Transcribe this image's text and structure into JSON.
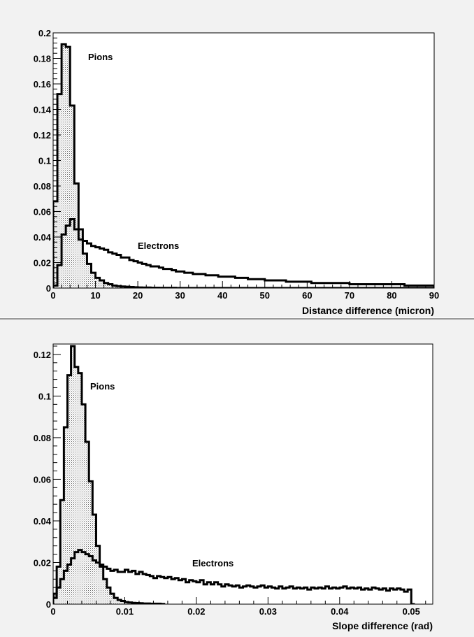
{
  "chart_data": [
    {
      "type": "area",
      "xlabel": "Distance difference (micron)",
      "ylabel": "",
      "xlim": [
        0,
        90
      ],
      "ylim": [
        0,
        0.2
      ],
      "x_ticks": [
        "0",
        "10",
        "20",
        "30",
        "40",
        "50",
        "60",
        "70",
        "80",
        "90"
      ],
      "y_ticks": [
        "0",
        "0.02",
        "0.04",
        "0.06",
        "0.08",
        "0.1",
        "0.12",
        "0.14",
        "0.16",
        "0.18",
        "0.2"
      ],
      "grid": false,
      "legend": "none",
      "bin_width": 1,
      "annotations": [
        "Pions",
        "Electrons"
      ],
      "series": [
        {
          "name": "Pions",
          "style": "filled-dotted",
          "x": [
            0,
            1,
            2,
            3,
            4,
            5,
            6,
            7,
            8,
            9,
            10,
            11,
            12,
            13,
            14,
            15,
            16,
            17,
            18,
            19,
            20,
            21,
            22,
            23,
            24,
            25,
            26,
            27,
            28,
            29,
            30,
            31,
            32,
            33,
            34,
            35,
            36,
            37,
            38,
            39,
            40,
            41,
            42,
            43,
            44,
            45,
            46,
            47,
            48,
            49,
            50,
            51,
            52,
            53,
            54,
            55,
            56,
            57,
            58,
            59,
            60,
            61,
            62,
            63,
            64,
            65,
            66,
            67,
            68,
            69,
            70,
            71,
            72,
            73,
            74,
            75,
            76,
            77,
            78,
            79,
            80,
            81,
            82,
            83,
            84,
            85,
            86,
            87,
            88,
            89
          ],
          "values": [
            0.068,
            0.152,
            0.191,
            0.189,
            0.143,
            0.082,
            0.046,
            0.027,
            0.019,
            0.012,
            0.008,
            0.006,
            0.004,
            0.003,
            0.002,
            0.0015,
            0.0012,
            0.001,
            0.0008,
            0.0006,
            0.0005,
            0.0004,
            0.0004,
            0.0003,
            0.0003,
            0.0002,
            0.0002,
            0.0002,
            0.0002,
            0.0001,
            0.0001,
            0.0001,
            0.0001,
            0.0001,
            0.0001,
            0.0001,
            0.0001,
            0.0001,
            0.0001,
            0.0001,
            0.0001,
            0.0001,
            0.0001,
            0.0001,
            0.0001,
            0.0001,
            0.0001,
            0.0001,
            0.0001,
            0.0001,
            0.0001,
            0.0001,
            0.0001,
            0.0001,
            0.0001,
            0.0001,
            0.0001,
            0.0001,
            0.0001,
            0.0001,
            0.0001,
            0.0001,
            0.0001,
            0.0001,
            0.0001,
            0.0001,
            0.0001,
            0.0001,
            0.0001,
            0.0001,
            0.0001,
            0.0001,
            0.0001,
            0.0001,
            0.0001,
            0.0001,
            0.0001,
            0.0001,
            0.0001,
            0.0001,
            0.0001,
            0.0001,
            0.0001,
            0.0001,
            0.0001,
            0.0001,
            0.0001,
            0.0001,
            0.0001,
            0.0001
          ]
        },
        {
          "name": "Electrons",
          "style": "line",
          "x": [
            0,
            1,
            2,
            3,
            4,
            5,
            6,
            7,
            8,
            9,
            10,
            11,
            12,
            13,
            14,
            15,
            16,
            17,
            18,
            19,
            20,
            21,
            22,
            23,
            24,
            25,
            26,
            27,
            28,
            29,
            30,
            31,
            32,
            33,
            34,
            35,
            36,
            37,
            38,
            39,
            40,
            41,
            42,
            43,
            44,
            45,
            46,
            47,
            48,
            49,
            50,
            51,
            52,
            53,
            54,
            55,
            56,
            57,
            58,
            59,
            60,
            61,
            62,
            63,
            64,
            65,
            66,
            67,
            68,
            69,
            70,
            71,
            72,
            73,
            74,
            75,
            76,
            77,
            78,
            79,
            80,
            81,
            82,
            83,
            84,
            85,
            86,
            87,
            88,
            89
          ],
          "values": [
            0.002,
            0.018,
            0.042,
            0.049,
            0.054,
            0.046,
            0.038,
            0.037,
            0.035,
            0.033,
            0.032,
            0.031,
            0.03,
            0.028,
            0.027,
            0.026,
            0.024,
            0.024,
            0.022,
            0.021,
            0.02,
            0.019,
            0.018,
            0.017,
            0.017,
            0.016,
            0.015,
            0.015,
            0.014,
            0.013,
            0.013,
            0.012,
            0.012,
            0.011,
            0.011,
            0.011,
            0.01,
            0.01,
            0.01,
            0.009,
            0.009,
            0.009,
            0.009,
            0.008,
            0.008,
            0.008,
            0.007,
            0.007,
            0.007,
            0.007,
            0.006,
            0.006,
            0.006,
            0.006,
            0.006,
            0.005,
            0.005,
            0.005,
            0.005,
            0.005,
            0.005,
            0.004,
            0.004,
            0.004,
            0.004,
            0.004,
            0.004,
            0.004,
            0.004,
            0.004,
            0.003,
            0.003,
            0.003,
            0.003,
            0.003,
            0.003,
            0.003,
            0.003,
            0.003,
            0.003,
            0.003,
            0.003,
            0.003,
            0.002,
            0.002,
            0.002,
            0.002,
            0.002,
            0.002,
            0.002
          ]
        }
      ]
    },
    {
      "type": "area",
      "xlabel": "Slope difference (rad)",
      "ylabel": "",
      "xlim": [
        0,
        0.053
      ],
      "ylim": [
        0,
        0.125
      ],
      "x_ticks": [
        "0",
        "0.01",
        "0.02",
        "0.03",
        "0.04",
        "0.05"
      ],
      "y_ticks": [
        "0",
        "0.02",
        "0.04",
        "0.06",
        "0.08",
        "0.1",
        "0.12"
      ],
      "grid": false,
      "legend": "none",
      "bin_width": 0.0005,
      "annotations": [
        "Pions",
        "Electrons"
      ],
      "series": [
        {
          "name": "Pions",
          "style": "filled-dotted",
          "x": [
            0,
            0.0005,
            0.001,
            0.0015,
            0.002,
            0.0025,
            0.003,
            0.0035,
            0.004,
            0.0045,
            0.005,
            0.0055,
            0.006,
            0.0065,
            0.007,
            0.0075,
            0.008,
            0.0085,
            0.009,
            0.0095,
            0.01,
            0.0105,
            0.011,
            0.0115,
            0.012,
            0.0125,
            0.013,
            0.0135,
            0.014,
            0.0145,
            0.015
          ],
          "values": [
            0.005,
            0.018,
            0.05,
            0.085,
            0.11,
            0.124,
            0.114,
            0.111,
            0.096,
            0.078,
            0.059,
            0.043,
            0.028,
            0.018,
            0.012,
            0.008,
            0.005,
            0.003,
            0.002,
            0.0015,
            0.001,
            0.0008,
            0.0006,
            0.0005,
            0.0004,
            0.0003,
            0.0003,
            0.0002,
            0.0002,
            0.0002,
            0.0001
          ]
        },
        {
          "name": "Electrons",
          "style": "line",
          "x": [
            0,
            0.0005,
            0.001,
            0.0015,
            0.002,
            0.0025,
            0.003,
            0.0035,
            0.004,
            0.0045,
            0.005,
            0.0055,
            0.006,
            0.0065,
            0.007,
            0.0075,
            0.008,
            0.0085,
            0.009,
            0.0095,
            0.01,
            0.0105,
            0.011,
            0.0115,
            0.012,
            0.0125,
            0.013,
            0.0135,
            0.014,
            0.0145,
            0.015,
            0.0155,
            0.016,
            0.0165,
            0.017,
            0.0175,
            0.018,
            0.0185,
            0.019,
            0.0195,
            0.02,
            0.0205,
            0.021,
            0.0215,
            0.022,
            0.0225,
            0.023,
            0.0235,
            0.024,
            0.0245,
            0.025,
            0.0255,
            0.026,
            0.0265,
            0.027,
            0.0275,
            0.028,
            0.0285,
            0.029,
            0.0295,
            0.03,
            0.0305,
            0.031,
            0.0315,
            0.032,
            0.0325,
            0.033,
            0.0335,
            0.034,
            0.0345,
            0.035,
            0.0355,
            0.036,
            0.0365,
            0.037,
            0.0375,
            0.038,
            0.0385,
            0.039,
            0.0395,
            0.04,
            0.0405,
            0.041,
            0.0415,
            0.042,
            0.0425,
            0.043,
            0.0435,
            0.044,
            0.0445,
            0.045,
            0.0455,
            0.046,
            0.0465,
            0.047,
            0.0475,
            0.048,
            0.0485,
            0.049,
            0.0495,
            0.05
          ],
          "values": [
            0.003,
            0.008,
            0.012,
            0.016,
            0.019,
            0.022,
            0.025,
            0.026,
            0.025,
            0.024,
            0.023,
            0.021,
            0.02,
            0.019,
            0.018,
            0.017,
            0.016,
            0.0165,
            0.0155,
            0.0155,
            0.0165,
            0.0155,
            0.016,
            0.0145,
            0.0155,
            0.0145,
            0.014,
            0.0135,
            0.0125,
            0.0135,
            0.013,
            0.0125,
            0.013,
            0.012,
            0.0125,
            0.0115,
            0.012,
            0.0105,
            0.0115,
            0.011,
            0.0105,
            0.0115,
            0.0095,
            0.0105,
            0.0095,
            0.0105,
            0.0095,
            0.0085,
            0.0095,
            0.009,
            0.0085,
            0.009,
            0.008,
            0.0085,
            0.009,
            0.0085,
            0.008,
            0.0085,
            0.009,
            0.008,
            0.0085,
            0.008,
            0.0075,
            0.0085,
            0.0075,
            0.008,
            0.0085,
            0.0075,
            0.008,
            0.0075,
            0.008,
            0.007,
            0.008,
            0.0075,
            0.008,
            0.0075,
            0.0085,
            0.0075,
            0.008,
            0.0075,
            0.008,
            0.0085,
            0.0075,
            0.008,
            0.0075,
            0.008,
            0.007,
            0.0075,
            0.007,
            0.008,
            0.0075,
            0.007,
            0.0075,
            0.0065,
            0.0075,
            0.007,
            0.0075,
            0.007,
            0.006,
            0.007,
            0
          ]
        }
      ]
    }
  ]
}
